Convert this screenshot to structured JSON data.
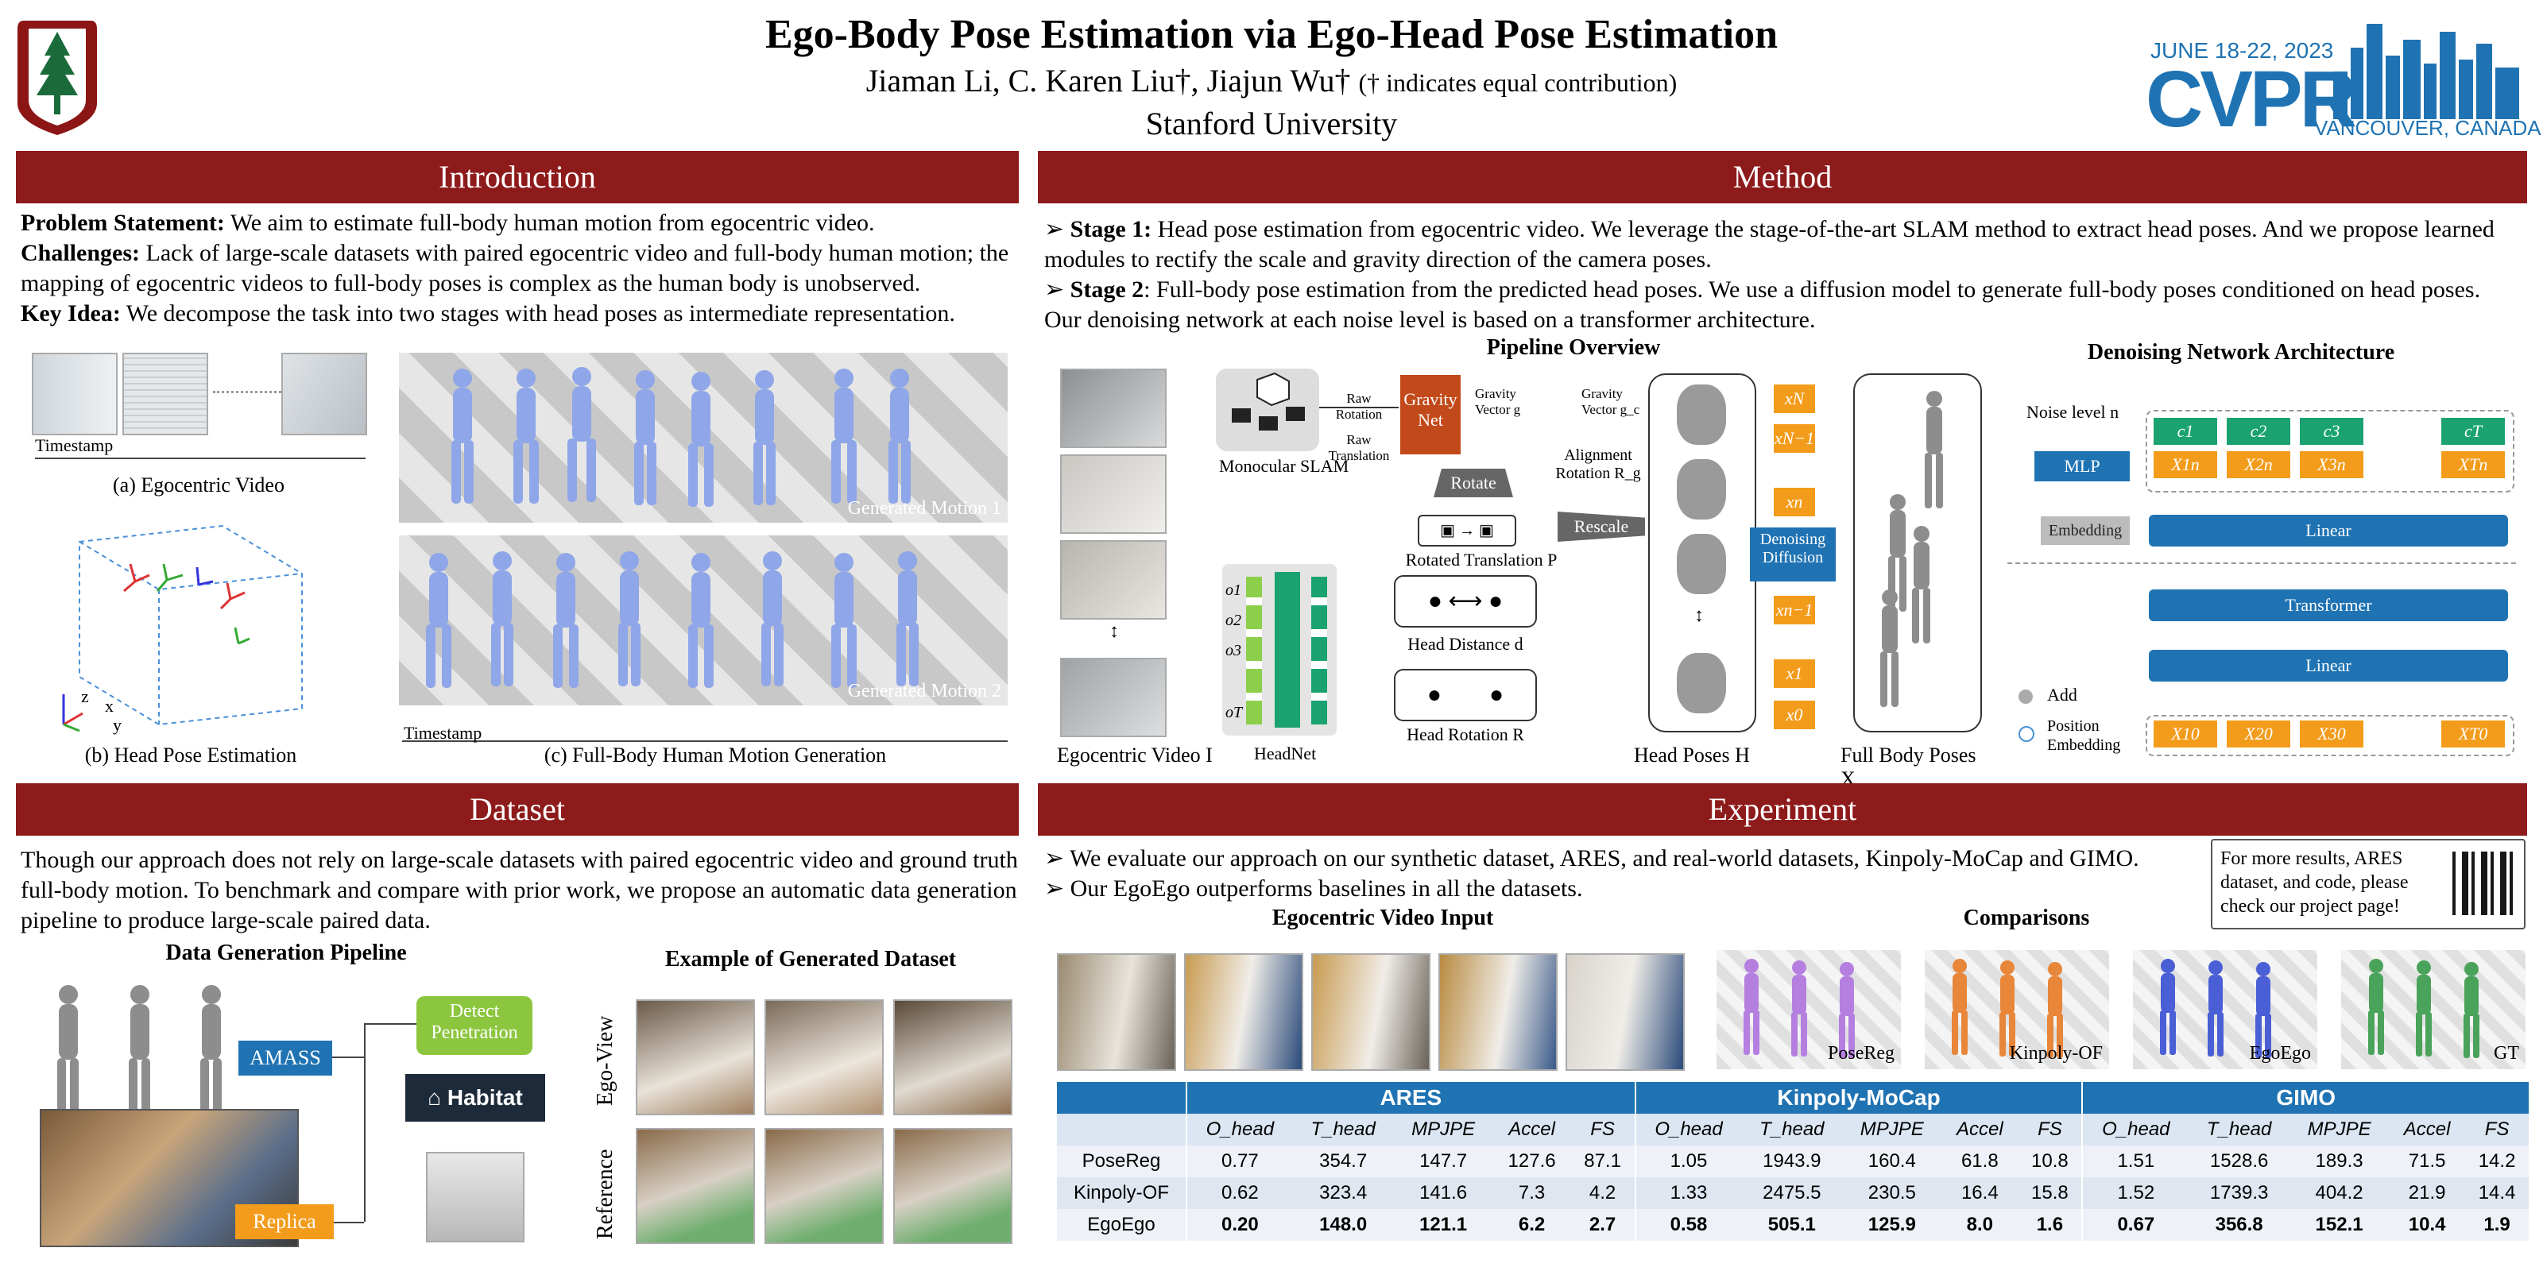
{
  "header": {
    "title": "Ego-Body Pose Estimation via Ego-Head Pose Estimation",
    "authors": "Jiaman Li, C. Karen Liu†, Jiajun Wu†",
    "note": "(† indicates equal contribution)",
    "affiliation": "Stanford University",
    "conf_dates": "JUNE 18-22, 2023",
    "conf_name": "CVPR",
    "conf_location": "VANCOUVER, CANADA"
  },
  "intro": {
    "heading": "Introduction",
    "problem_label": "Problem Statement:",
    "problem_text": " We aim to estimate full-body human motion from egocentric video.",
    "challenges_label": "Challenges:",
    "challenges_text": " Lack of large-scale datasets with paired egocentric video and full-body human motion; the mapping of egocentric videos to full-body poses is complex as the human body is unobserved.",
    "keyidea_label": "Key Idea:",
    "keyidea_text": " We decompose the task into two stages with head poses as intermediate representation.",
    "timestamp_a": "Timestamp",
    "cap_a": "(a) Egocentric Video",
    "cap_b": "(b) Head Pose Estimation",
    "timestamp_c": "Timestamp",
    "cap_c": "(c) Full-Body Human Motion Generation",
    "motion1": "Generated Motion 1",
    "motion2": "Generated Motion 2",
    "axis_z": "z",
    "axis_x": "x",
    "axis_y": "y"
  },
  "method": {
    "heading": "Method",
    "stage1_label": "Stage 1:",
    "stage1_text": " Head pose estimation from egocentric video. We leverage the stage-of-the-art SLAM method to extract head poses. And we propose learned modules to rectify the scale and gravity direction of the camera poses.",
    "stage2_label": "Stage 2",
    "stage2_text": ": Full-body pose estimation from the predicted head poses. We use a diffusion model to generate full-body poses conditioned on head poses. Our denoising network at each noise level is based on a transformer architecture.",
    "pipeline_title": "Pipeline Overview",
    "monocular_slam": "Monocular SLAM",
    "raw_rotation": "Raw Rotation",
    "raw_translation": "Raw Translation",
    "gravity_net": "Gravity Net",
    "gravity_vec_g": "Gravity Vector g",
    "gravity_vec_gc": "Gravity Vector g_c",
    "alignment": "Alignment Rotation R_g",
    "rotate": "Rotate",
    "rescale": "Rescale",
    "rotated_translation": "Rotated Translation P",
    "head_distance": "Head Distance d",
    "head_rotation": "Head Rotation R",
    "headnet": "HeadNet",
    "egocentric_video": "Egocentric Video I",
    "head_poses": "Head Poses H",
    "full_body_poses": "Full Body Poses X",
    "denoising_diffusion": "Denoising Diffusion",
    "obs": [
      "o1",
      "o2",
      "o3",
      "oT"
    ],
    "x_tokens": [
      "xN",
      "xN−1",
      "xn",
      "xn−1",
      "x1",
      "x0"
    ],
    "denoise_title": "Denoising Network Architecture",
    "noise_level": "Noise level n",
    "mlp": "MLP",
    "embedding": "Embedding",
    "linear_top": "Linear",
    "transformer": "Transformer",
    "linear_bottom": "Linear",
    "c_tokens": [
      "c1",
      "c2",
      "c3",
      "cT"
    ],
    "xn_tokens": [
      "X1n",
      "X2n",
      "X3n",
      "XTn"
    ],
    "x0_tokens": [
      "X10",
      "X20",
      "X30",
      "XT0"
    ],
    "legend_add": "Add",
    "legend_pos": "Position Embedding"
  },
  "dataset": {
    "heading": "Dataset",
    "text": "Though our approach does not rely on large-scale datasets with paired egocentric video and ground truth full-body motion. To benchmark and compare with prior work, we propose an automatic data generation pipeline to produce large-scale paired data.",
    "pipeline_title": "Data Generation Pipeline",
    "example_title": "Example of Generated Dataset",
    "amass": "AMASS",
    "replica": "Replica",
    "detect": "Detect Penetration",
    "habitat": "Habitat",
    "ego_view": "Ego-View",
    "reference": "Reference"
  },
  "experiment": {
    "heading": "Experiment",
    "bullet1": "We evaluate our approach on our synthetic dataset, ARES, and real-world datasets, Kinpoly-MoCap and GIMO.",
    "bullet2": "Our EgoEgo outperforms baselines in all the datasets.",
    "qr_text": "For more results, ARES dataset, and code, please check our project page!",
    "input_title": "Egocentric Video Input",
    "comparisons_title": "Comparisons",
    "comp_labels": [
      "PoseReg",
      "Kinpoly-OF",
      "EgoEgo",
      "GT"
    ],
    "comp_colors": [
      "#b57fe0",
      "#e8863a",
      "#4a5fd6",
      "#4aa35a"
    ],
    "table": {
      "groups": [
        "ARES",
        "Kinpoly-MoCap",
        "GIMO"
      ],
      "metrics": [
        "O_head",
        "T_head",
        "MPJPE",
        "Accel",
        "FS"
      ],
      "rows": [
        {
          "name": "PoseReg",
          "vals": [
            "0.77",
            "354.7",
            "147.7",
            "127.6",
            "87.1",
            "1.05",
            "1943.9",
            "160.4",
            "61.8",
            "10.8",
            "1.51",
            "1528.6",
            "189.3",
            "71.5",
            "14.2"
          ]
        },
        {
          "name": "Kinpoly-OF",
          "vals": [
            "0.62",
            "323.4",
            "141.6",
            "7.3",
            "4.2",
            "1.33",
            "2475.5",
            "230.5",
            "16.4",
            "15.8",
            "1.52",
            "1739.3",
            "404.2",
            "21.9",
            "14.4"
          ]
        },
        {
          "name": "EgoEgo",
          "vals": [
            "0.20",
            "148.0",
            "121.1",
            "6.2",
            "2.7",
            "0.58",
            "505.1",
            "125.9",
            "8.0",
            "1.6",
            "0.67",
            "356.8",
            "152.1",
            "10.4",
            "1.9"
          ]
        }
      ]
    }
  }
}
